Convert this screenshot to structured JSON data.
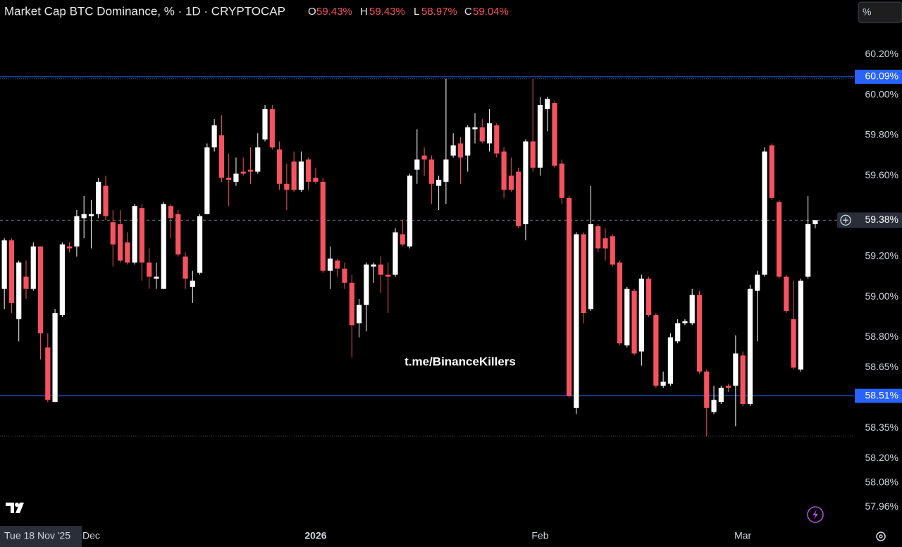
{
  "chart_data": {
    "type": "candlestick",
    "title": "Market Cap BTC Dominance, % · 1D · CRYPTOCAP",
    "ohlc_readout": [
      {
        "label": "O",
        "value": "59.43%"
      },
      {
        "label": "H",
        "value": "59.43%"
      },
      {
        "label": "L",
        "value": "58.97%"
      },
      {
        "label": "C",
        "value": "59.04%"
      }
    ],
    "unit_button": "%",
    "watermark": "t.me/BinanceKillers",
    "crosshair_date": "Tue 18 Nov '25",
    "up_color": "#ffffff",
    "down_color": "#f7525f",
    "open": [
      59.04,
      59.28,
      58.89,
      59.1,
      59.04,
      59.25,
      58.75,
      58.48,
      58.91,
      59.25,
      59.25,
      59.39,
      59.4,
      59.41,
      59.55,
      59.37,
      59.36,
      59.27,
      59.17,
      59.44,
      59.17,
      59.09,
      59.04,
      59.45,
      59.41,
      59.2,
      59.05,
      59.12,
      59.41,
      59.74,
      59.8,
      59.59,
      59.57,
      59.62,
      59.63,
      59.62,
      59.78,
      59.93,
      59.73,
      59.56,
      59.67,
      59.53,
      59.68,
      59.59,
      59.57,
      59.13,
      59.18,
      59.14,
      59.07,
      58.87,
      58.96,
      59.15,
      59.16,
      59.11,
      59.11,
      59.31,
      59.25,
      59.63,
      59.7,
      59.68,
      59.55,
      59.57,
      59.7,
      59.76,
      59.7,
      59.83,
      59.84,
      59.76,
      59.85,
      59.72,
      59.6,
      59.62,
      59.36,
      59.77,
      59.64,
      59.93,
      59.96,
      59.66,
      59.49,
      58.45,
      59.31,
      58.94,
      59.35,
      59.29,
      59.3,
      59.17,
      58.76,
      59.03,
      58.73,
      59.09,
      58.91,
      58.56,
      58.57,
      58.78,
      58.87,
      58.87,
      59.01,
      58.63,
      58.43,
      58.48,
      58.56,
      58.56,
      58.71,
      58.47,
      59.03,
      59.11,
      59.75,
      59.47,
      59.1,
      58.89,
      58.64,
      59.1,
      59.36
    ],
    "high": [
      59.29,
      59.29,
      59.18,
      59.18,
      59.27,
      59.25,
      58.82,
      58.94,
      59.27,
      59.27,
      59.43,
      59.5,
      59.48,
      59.59,
      59.6,
      59.43,
      59.43,
      59.32,
      59.46,
      59.46,
      59.24,
      59.17,
      59.47,
      59.46,
      59.43,
      59.22,
      59.13,
      59.41,
      59.76,
      59.88,
      59.9,
      59.71,
      59.69,
      59.69,
      59.74,
      59.81,
      59.95,
      59.95,
      59.77,
      59.66,
      59.72,
      59.72,
      59.69,
      59.64,
      59.59,
      59.25,
      59.19,
      59.17,
      59.11,
      58.99,
      59.17,
      59.17,
      59.2,
      59.17,
      59.34,
      59.38,
      59.61,
      59.83,
      59.74,
      59.7,
      59.6,
      60.08,
      59.81,
      59.79,
      59.85,
      59.91,
      59.88,
      59.93,
      59.86,
      59.74,
      59.69,
      59.64,
      59.78,
      60.08,
      59.99,
      59.99,
      59.97,
      59.68,
      59.5,
      59.32,
      59.32,
      59.55,
      59.36,
      59.34,
      59.31,
      59.18,
      59.05,
      59.04,
      59.11,
      59.1,
      58.92,
      58.63,
      58.82,
      58.89,
      58.89,
      59.04,
      59.03,
      58.64,
      58.56,
      58.56,
      58.57,
      58.81,
      58.73,
      59.06,
      59.13,
      59.74,
      59.76,
      59.48,
      59.11,
      59.08,
      59.09,
      59.5,
      59.38
    ],
    "low": [
      58.94,
      58.92,
      58.78,
      58.99,
      59.03,
      58.69,
      58.48,
      58.48,
      58.9,
      59.22,
      59.2,
      59.29,
      59.24,
      59.39,
      59.38,
      59.15,
      59.17,
      59.16,
      59.16,
      59.08,
      59.04,
      59.04,
      59.04,
      59.29,
      59.2,
      59.04,
      58.97,
      59.11,
      59.41,
      59.72,
      59.57,
      59.45,
      59.55,
      59.6,
      59.56,
      59.61,
      59.77,
      59.73,
      59.53,
      59.43,
      59.52,
      59.52,
      59.53,
      59.56,
      59.12,
      59.04,
      59.1,
      59.04,
      58.7,
      58.8,
      58.83,
      59.07,
      59.02,
      58.92,
      59.1,
      59.25,
      59.24,
      59.56,
      59.6,
      59.46,
      59.43,
      59.46,
      59.69,
      59.56,
      59.62,
      59.76,
      59.76,
      59.72,
      59.69,
      59.49,
      59.52,
      59.34,
      59.28,
      59.62,
      59.6,
      59.82,
      59.64,
      59.46,
      58.5,
      58.42,
      58.87,
      58.93,
      59.22,
      59.18,
      59.15,
      58.76,
      58.75,
      58.71,
      58.66,
      58.9,
      58.55,
      58.55,
      58.56,
      58.77,
      58.86,
      58.86,
      58.62,
      58.31,
      58.42,
      58.47,
      58.53,
      58.36,
      58.46,
      58.46,
      58.78,
      59.1,
      59.48,
      59.09,
      58.92,
      58.64,
      58.63,
      59.09,
      59.34
    ],
    "close": [
      59.28,
      58.97,
      59.17,
      59.04,
      59.25,
      58.82,
      58.49,
      58.92,
      59.26,
      59.24,
      59.4,
      59.41,
      59.41,
      59.57,
      59.4,
      59.26,
      59.18,
      59.17,
      59.45,
      59.17,
      59.1,
      59.1,
      59.46,
      59.39,
      59.21,
      59.09,
      59.08,
      59.4,
      59.74,
      59.85,
      59.59,
      59.58,
      59.61,
      59.61,
      59.62,
      59.74,
      59.93,
      59.74,
      59.56,
      59.53,
      59.53,
      59.67,
      59.57,
      59.57,
      59.13,
      59.19,
      59.14,
      59.07,
      58.86,
      58.96,
      59.16,
      59.16,
      59.11,
      59.1,
      59.32,
      59.26,
      59.6,
      59.68,
      59.68,
      59.56,
      59.58,
      59.68,
      59.75,
      59.69,
      59.84,
      59.84,
      59.77,
      59.86,
      59.71,
      59.53,
      59.53,
      59.35,
      59.77,
      59.64,
      59.95,
      59.98,
      59.65,
      59.49,
      58.51,
      59.31,
      58.92,
      59.36,
      59.24,
      59.24,
      59.16,
      58.77,
      59.04,
      58.72,
      59.09,
      58.91,
      58.56,
      58.58,
      58.8,
      58.87,
      58.88,
      59.01,
      58.63,
      58.45,
      58.49,
      58.55,
      58.55,
      58.72,
      58.47,
      59.04,
      59.11,
      59.72,
      59.49,
      59.1,
      58.93,
      58.65,
      59.08,
      59.36,
      59.38
    ],
    "xlim": [
      -0.6,
      116
    ],
    "xticks": [
      {
        "value": 12,
        "label": "Dec"
      },
      {
        "value": 43,
        "label": "2026"
      },
      {
        "value": 74,
        "label": "Feb"
      },
      {
        "value": 102,
        "label": "Mar"
      }
    ],
    "ylim": [
      57.87,
      60.47
    ],
    "yticks": [
      {
        "value": 60.2,
        "label": "60.20%"
      },
      {
        "value": 60.0,
        "label": "60.00%"
      },
      {
        "value": 59.8,
        "label": "59.80%"
      },
      {
        "value": 59.6,
        "label": "59.60%"
      },
      {
        "value": 59.2,
        "label": "59.20%"
      },
      {
        "value": 59.0,
        "label": "59.00%"
      },
      {
        "value": 58.8,
        "label": "58.80%"
      },
      {
        "value": 58.65,
        "label": "58.65%"
      },
      {
        "value": 58.35,
        "label": "58.35%"
      },
      {
        "value": 58.2,
        "label": "58.20%"
      },
      {
        "value": 58.08,
        "label": "58.08%"
      },
      {
        "value": 57.96,
        "label": "57.96%"
      }
    ],
    "price_lines": [
      {
        "value": 60.09,
        "label": "60.09%",
        "color": "#2962ff"
      },
      {
        "value": 58.51,
        "label": "58.51%",
        "color": "#2962ff"
      }
    ],
    "range_lines": [
      60.08,
      58.31
    ],
    "last_price": {
      "value": 59.38,
      "label": "59.38%"
    }
  }
}
